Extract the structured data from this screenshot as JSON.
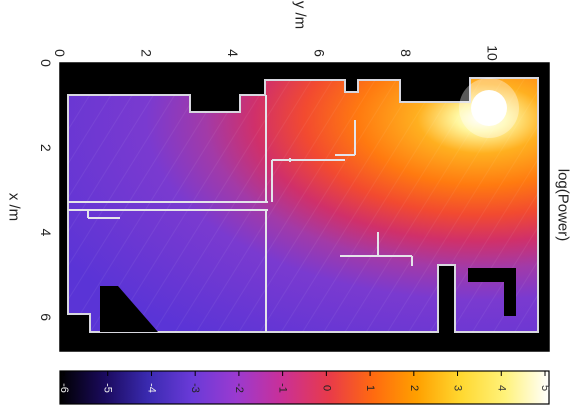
{
  "chart_data": {
    "type": "heatmap",
    "title": "",
    "xlabel": "x /m",
    "ylabel": "y /m",
    "colorbar_label": "log(Power)",
    "xlim": [
      0,
      6.8
    ],
    "ylim": [
      0,
      11.3
    ],
    "x_ticks": [
      "0",
      "2",
      "4",
      "6"
    ],
    "y_ticks": [
      "0",
      "2",
      "4",
      "6",
      "8",
      "10"
    ],
    "colorbar": {
      "range": [
        -6,
        5
      ],
      "ticks": [
        "-6",
        "-5",
        "-4",
        "-3",
        "-2",
        "-1",
        "0",
        "1",
        "2",
        "3",
        "4",
        "5"
      ],
      "colormap": [
        "#000000",
        "#1a0a5c",
        "#3a2ab0",
        "#6a3ad8",
        "#9a3ad0",
        "#c8309a",
        "#e83a4a",
        "#ff6a10",
        "#ffa000",
        "#ffd830",
        "#fff27a",
        "#ffffff"
      ]
    },
    "source": {
      "x": 0.8,
      "y": 10.1,
      "label": ""
    },
    "grid": false
  }
}
